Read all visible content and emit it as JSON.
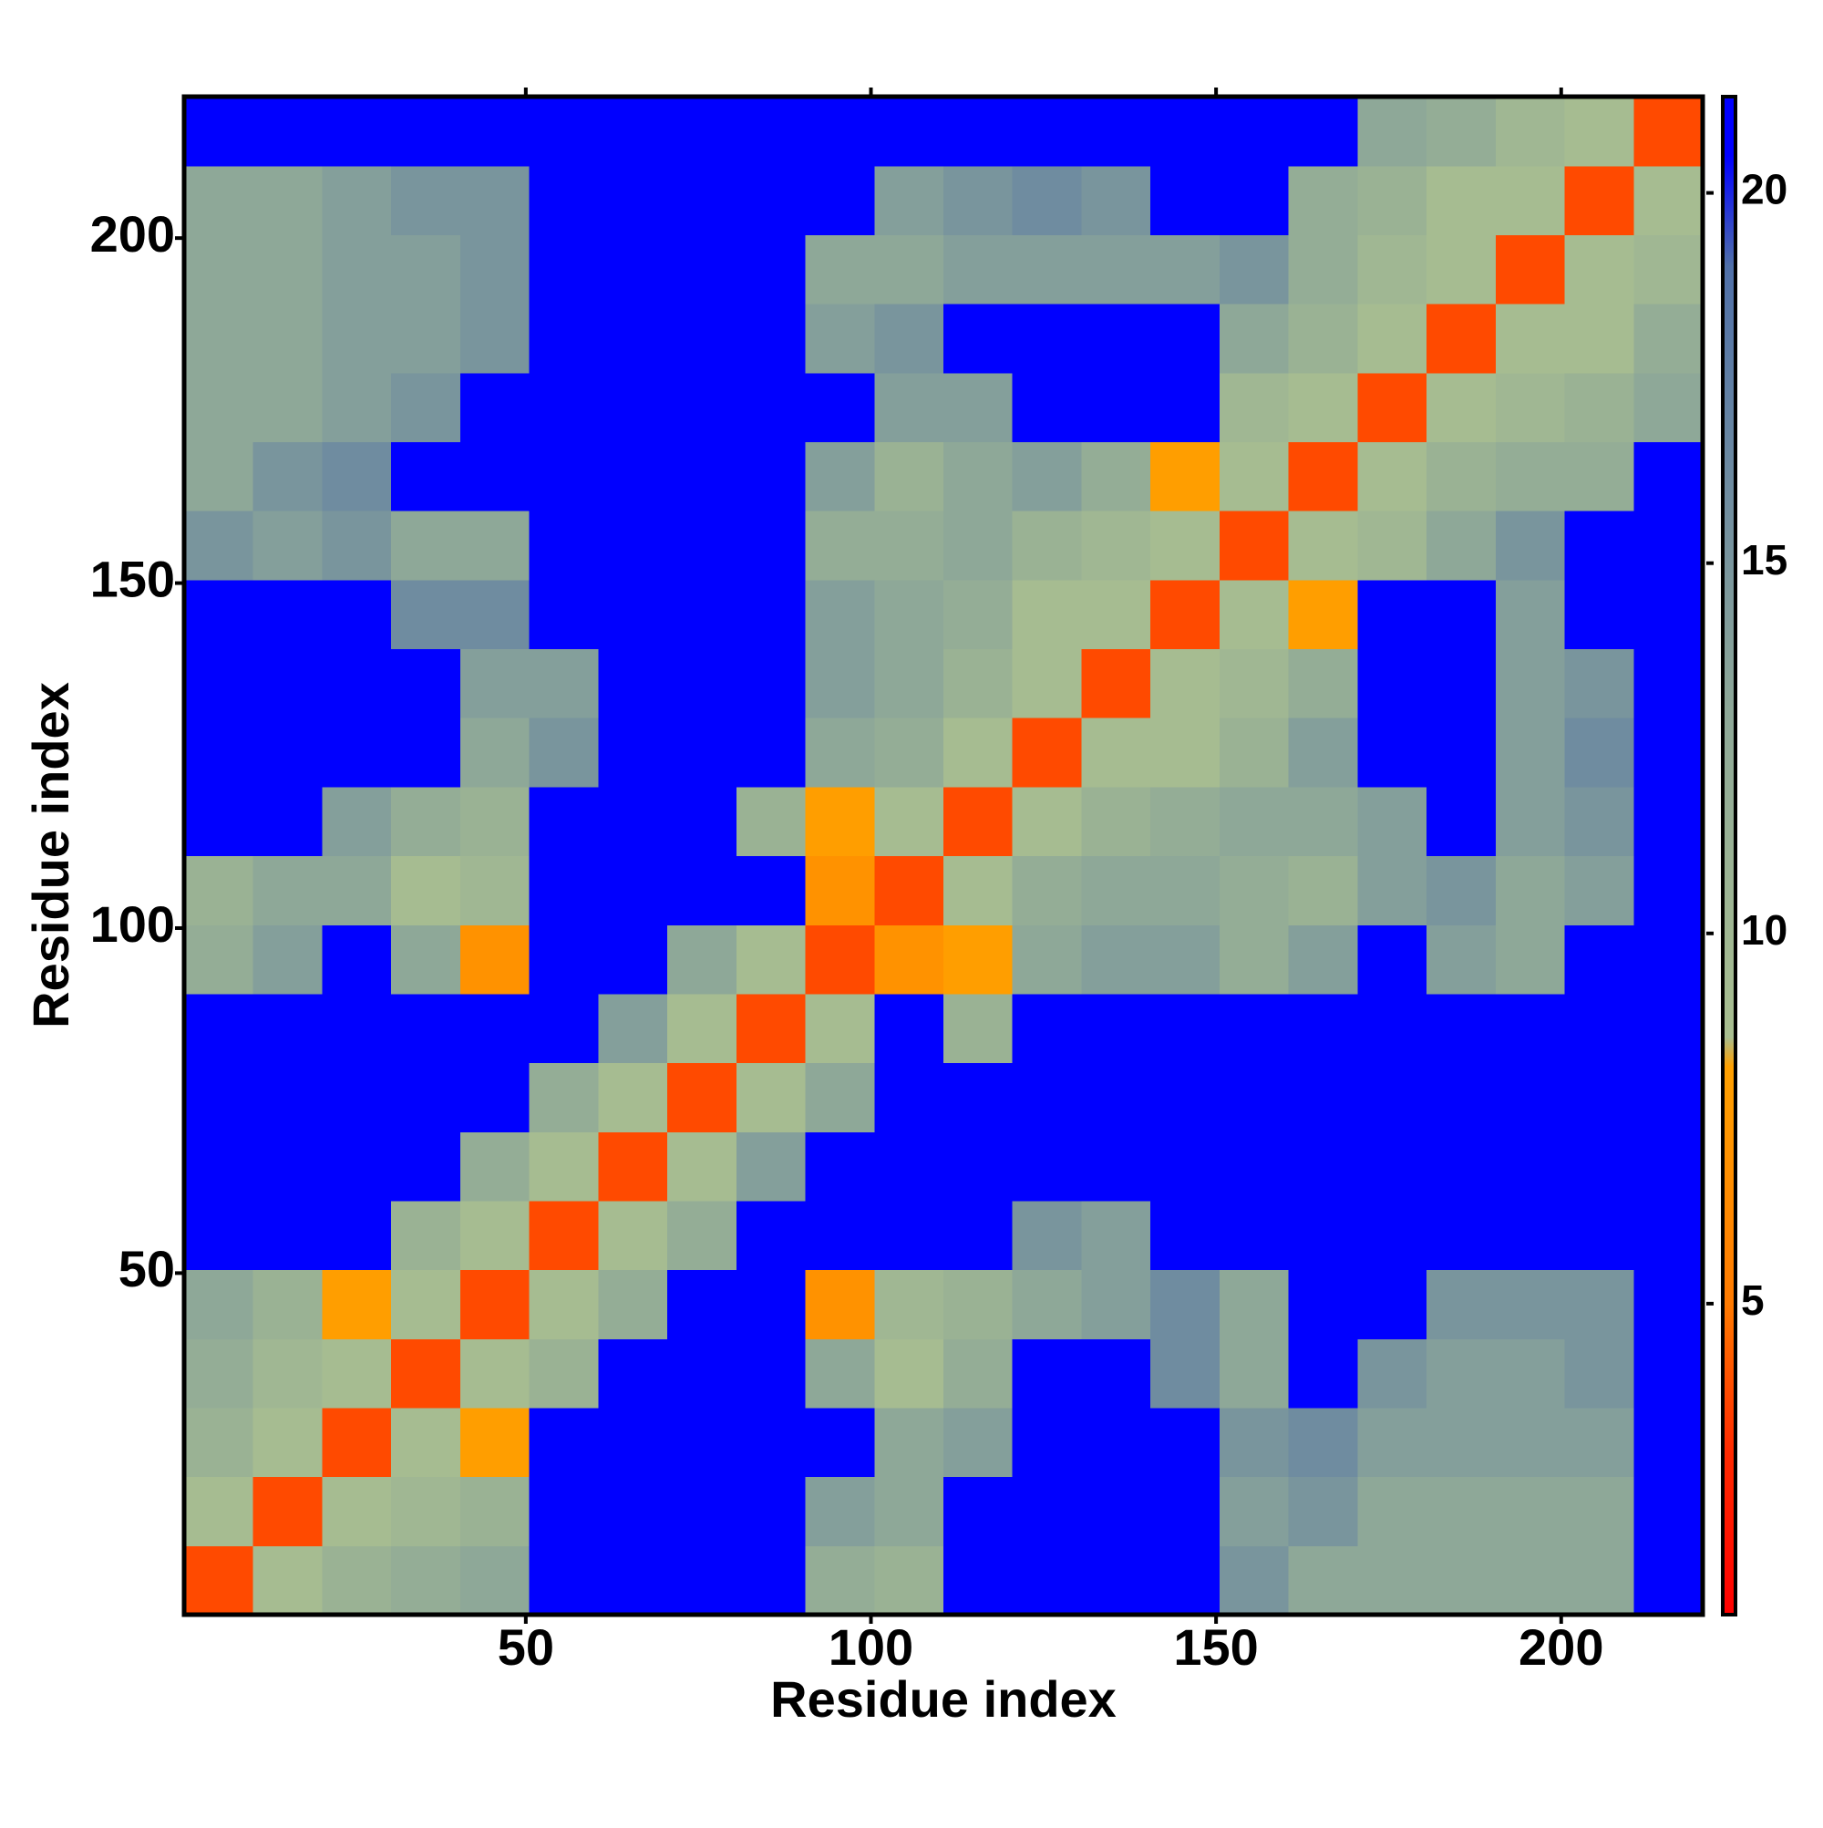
{
  "chart_data": {
    "type": "heatmap",
    "x_label": "Residue index",
    "y_label": "Residue index",
    "x": [
      5.5,
      15.5,
      25.5,
      35.5,
      45.5,
      55.5,
      65.5,
      75.5,
      85.5,
      95.5,
      105.5,
      115.5,
      125.5,
      135.5,
      145.5,
      155.5,
      165.5,
      175.5,
      185.5,
      195.5,
      205.5,
      215.5
    ],
    "y": [
      5.5,
      15.5,
      25.5,
      35.5,
      45.5,
      55.5,
      65.5,
      75.5,
      85.5,
      95.5,
      105.5,
      115.5,
      125.5,
      135.5,
      145.5,
      155.5,
      165.5,
      175.5,
      185.5,
      195.5,
      205.5,
      215.5
    ],
    "values": [
      [
        3.8,
        9,
        11,
        12,
        13,
        21,
        21,
        21,
        21,
        12,
        11,
        21,
        21,
        21,
        21,
        15,
        13,
        13,
        13,
        13,
        13,
        21
      ],
      [
        9,
        3.8,
        9,
        10,
        11,
        21,
        21,
        21,
        21,
        14,
        13,
        21,
        21,
        21,
        21,
        14,
        15,
        13,
        13,
        13,
        13,
        21
      ],
      [
        11,
        9,
        3.8,
        9,
        8,
        21,
        21,
        21,
        21,
        21,
        13,
        14,
        21,
        21,
        21,
        15,
        16,
        14,
        14,
        14,
        14,
        21
      ],
      [
        12,
        10,
        9,
        3.8,
        9,
        11,
        21,
        21,
        21,
        13,
        9,
        12,
        21,
        21,
        16,
        13,
        21,
        15,
        14,
        14,
        15,
        21
      ],
      [
        13,
        11,
        8,
        9,
        3.8,
        9,
        12,
        21,
        21,
        7,
        10,
        11,
        13,
        14,
        16,
        13,
        21,
        21,
        15,
        15,
        15,
        21
      ],
      [
        21,
        21,
        21,
        11,
        9,
        3.8,
        9,
        12,
        21,
        21,
        21,
        21,
        15,
        14,
        21,
        21,
        21,
        21,
        21,
        21,
        21,
        21
      ],
      [
        21,
        21,
        21,
        21,
        12,
        9,
        3.8,
        9,
        14,
        21,
        21,
        21,
        21,
        21,
        21,
        21,
        21,
        21,
        21,
        21,
        21,
        21
      ],
      [
        21,
        21,
        21,
        21,
        21,
        12,
        9,
        3.8,
        9,
        13,
        21,
        21,
        21,
        21,
        21,
        21,
        21,
        21,
        21,
        21,
        21,
        21
      ],
      [
        21,
        21,
        21,
        21,
        21,
        21,
        14,
        9,
        3.8,
        9,
        21,
        11,
        21,
        21,
        21,
        21,
        21,
        21,
        21,
        21,
        21,
        21
      ],
      [
        12,
        14,
        21,
        13,
        7,
        21,
        21,
        13,
        9,
        3.8,
        7,
        8,
        13,
        14,
        14,
        12,
        14,
        21,
        14,
        13,
        21,
        21
      ],
      [
        11,
        13,
        13,
        9,
        10,
        21,
        21,
        21,
        21,
        7,
        3.8,
        9,
        12,
        13,
        13,
        12,
        11,
        14,
        15,
        13,
        14,
        21
      ],
      [
        21,
        21,
        14,
        12,
        11,
        21,
        21,
        21,
        11,
        8,
        9,
        3.8,
        9,
        11,
        12,
        13,
        13,
        14,
        21,
        14,
        15,
        21
      ],
      [
        21,
        21,
        21,
        21,
        13,
        15,
        21,
        21,
        21,
        13,
        12,
        9,
        3.8,
        9,
        9,
        11,
        14,
        21,
        21,
        14,
        16,
        21
      ],
      [
        21,
        21,
        21,
        21,
        14,
        14,
        21,
        21,
        21,
        14,
        13,
        11,
        9,
        3.8,
        9,
        10,
        12,
        21,
        21,
        14,
        15,
        21
      ],
      [
        21,
        21,
        21,
        16,
        16,
        21,
        21,
        21,
        21,
        14,
        13,
        12,
        9,
        9,
        3.8,
        9,
        8,
        21,
        21,
        14,
        21,
        21
      ],
      [
        15,
        14,
        15,
        13,
        13,
        21,
        21,
        21,
        21,
        12,
        12,
        13,
        11,
        10,
        9,
        3.8,
        9,
        10,
        13,
        15,
        21,
        21
      ],
      [
        13,
        15,
        16,
        21,
        21,
        21,
        21,
        21,
        21,
        14,
        11,
        13,
        14,
        12,
        8,
        9,
        3.8,
        9,
        11,
        12,
        12,
        21
      ],
      [
        13,
        13,
        14,
        15,
        21,
        21,
        21,
        21,
        21,
        21,
        14,
        14,
        21,
        21,
        21,
        10,
        9,
        3.8,
        9,
        10,
        11,
        13
      ],
      [
        13,
        13,
        14,
        14,
        15,
        21,
        21,
        21,
        21,
        14,
        15,
        21,
        21,
        21,
        21,
        13,
        11,
        9,
        3.8,
        9,
        9,
        12
      ],
      [
        13,
        13,
        14,
        14,
        15,
        21,
        21,
        21,
        21,
        13,
        13,
        14,
        14,
        14,
        14,
        15,
        12,
        10,
        9,
        3.8,
        9,
        10
      ],
      [
        13,
        13,
        14,
        15,
        15,
        21,
        21,
        21,
        21,
        21,
        14,
        15,
        16,
        15,
        21,
        21,
        12,
        11,
        9,
        9,
        3.8,
        9
      ],
      [
        21,
        21,
        21,
        21,
        21,
        21,
        21,
        21,
        21,
        21,
        21,
        21,
        21,
        21,
        21,
        21,
        21,
        13,
        12,
        10,
        9,
        3.8
      ]
    ],
    "xlim": [
      0.5,
      220.5
    ],
    "ylim": [
      0.5,
      220.5
    ],
    "xticks": [
      50,
      100,
      150,
      200
    ],
    "yticks": [
      50,
      100,
      150,
      200
    ],
    "colorbar_lim": [
      0.8,
      21.3
    ],
    "colorbar_ticks": [
      5,
      10,
      15,
      20
    ],
    "colorscale": [
      {
        "value": 0.8,
        "color": "#ff0000"
      },
      {
        "value": 3,
        "color": "#ff2a00"
      },
      {
        "value": 5,
        "color": "#ff7a00"
      },
      {
        "value": 8.2,
        "color": "#ffa000"
      },
      {
        "value": 8.6,
        "color": "#a8be90"
      },
      {
        "value": 13,
        "color": "#8ea898"
      },
      {
        "value": 19,
        "color": "#5070a8"
      },
      {
        "value": 20.5,
        "color": "#0000ff"
      },
      {
        "value": 21.3,
        "color": "#0000ff"
      }
    ]
  }
}
